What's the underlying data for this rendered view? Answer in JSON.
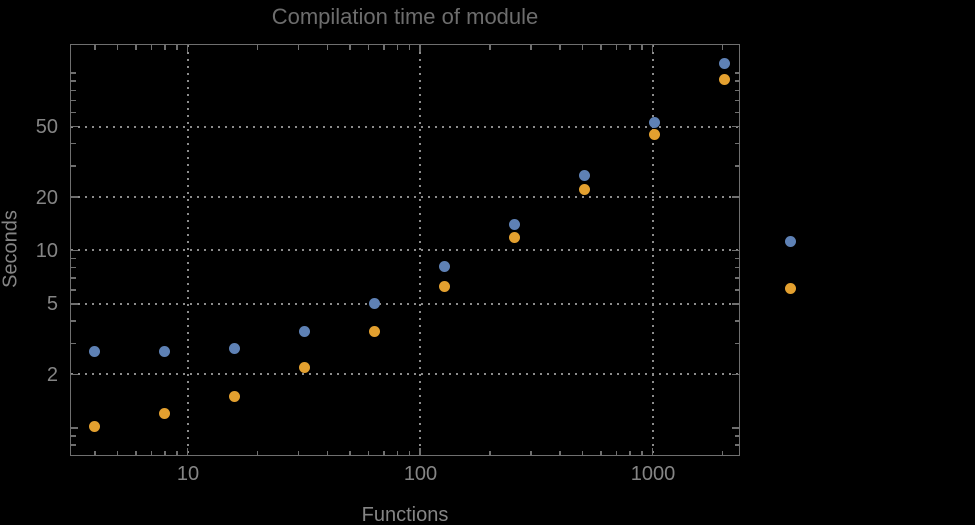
{
  "colors": {
    "background": "#000000",
    "frame": "#6f6f6f",
    "gridline": "#8c8c8c",
    "title_text": "#6d6d6d",
    "label_text": "#858585",
    "series_blue": "#5e81b5",
    "series_orange": "#e3a02f"
  },
  "chart_data": {
    "type": "scatter",
    "title": "Compilation time of module",
    "xlabel": "Functions",
    "ylabel": "Seconds",
    "xscale": "log",
    "yscale": "log",
    "xlim": [
      3.1,
      2370
    ],
    "ylim": [
      0.7,
      147
    ],
    "grid": "dotted",
    "x": [
      4,
      8,
      16,
      32,
      64,
      128,
      256,
      512,
      1024,
      2048
    ],
    "series": [
      {
        "name": "series-blue",
        "color": "#5e81b5",
        "values": [
          2.7,
          2.7,
          2.8,
          3.5,
          5.0,
          8.1,
          14.0,
          26.5,
          53,
          113
        ]
      },
      {
        "name": "series-orange",
        "color": "#e3a02f",
        "values": [
          1.02,
          1.2,
          1.5,
          2.2,
          3.5,
          6.3,
          11.8,
          22,
          45,
          92
        ]
      }
    ],
    "x_gridlines": [
      10,
      100,
      1000
    ],
    "y_gridlines": [
      2,
      5,
      10,
      20,
      50
    ],
    "x_ticks": [
      {
        "value": 10,
        "label": "10"
      },
      {
        "value": 100,
        "label": "100"
      },
      {
        "value": 1000,
        "label": "1000"
      }
    ],
    "x_ticks_minor": [
      4,
      5,
      6,
      7,
      8,
      9,
      20,
      30,
      40,
      50,
      60,
      70,
      80,
      90,
      200,
      300,
      400,
      500,
      600,
      700,
      800,
      900,
      2000
    ],
    "y_ticks": [
      {
        "value": 50,
        "label": "50"
      },
      {
        "value": 20,
        "label": "20"
      },
      {
        "value": 10,
        "label": "10"
      },
      {
        "value": 5,
        "label": "5"
      },
      {
        "value": 2,
        "label": "2"
      },
      {
        "value": 1,
        "label": ""
      }
    ],
    "y_ticks_minor": [
      0.8,
      0.9,
      3,
      4,
      6,
      7,
      8,
      9,
      30,
      40,
      60,
      70,
      80,
      90,
      100
    ],
    "legend_position": "right",
    "legend_markers": [
      {
        "name": "legend-marker-blue",
        "color": "#5e81b5",
        "label": ""
      },
      {
        "name": "legend-marker-orange",
        "color": "#e3a02f",
        "label": ""
      }
    ]
  }
}
